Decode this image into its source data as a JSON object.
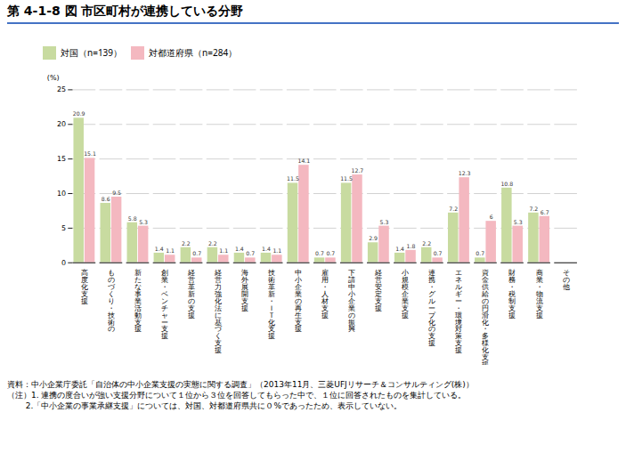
{
  "chart_data": {
    "type": "bar",
    "title": "第 4-1-8 図 市区町村が連携している分野",
    "ylabel": "(%)",
    "categories": [
      "高度化支援",
      "ものづくり・技術の",
      "新たな事業活動支援",
      "創業・ベンチャー支援",
      "経営革新の支援",
      "経営力強化法に基づく支援",
      "海外展開支援",
      "技術革新・ＩＴ化支援",
      "中小企業の再生支援",
      "雇用・人材支援",
      "下請中小企業の振興",
      "経営安定支援",
      "小規模企業支援",
      "連携・グループ化の支援",
      "エネルギー・環境対策支援",
      "資金供給の円滑化・多様化支援",
      "財務・税制支援",
      "商業・物流支援",
      "その他"
    ],
    "series": [
      {
        "name": "対国（n=139）",
        "color": "#c8dba0",
        "values": [
          20.9,
          8.6,
          5.8,
          1.4,
          2.2,
          2.2,
          1.4,
          1.4,
          11.5,
          0.7,
          11.5,
          2.9,
          1.4,
          2.2,
          7.2,
          0.7,
          10.8,
          7.2,
          0.0
        ]
      },
      {
        "name": "対都道府県（n=284）",
        "color": "#f4b8c0",
        "values": [
          15.1,
          9.5,
          5.3,
          1.1,
          0.7,
          1.1,
          0.7,
          1.1,
          14.1,
          0.7,
          12.7,
          5.3,
          1.8,
          0.7,
          12.3,
          6.0,
          5.3,
          6.7,
          0.0
        ]
      }
    ],
    "ylim": [
      0,
      25
    ],
    "yticks": [
      0,
      5,
      10,
      15,
      20,
      25
    ],
    "grid": true,
    "legend": "top",
    "data_labels": true,
    "annotations": [
      "資料：中小企業庁委託「自治体の中小企業支援の実態に関する調査」（2013年11月、三菱UFJリサーチ＆コンサルティング(株)）",
      "（注）1. 連携の度合いが強い支援分野について１位から３位を回答してもらった中で、１位に回答されたものを集計している。",
      "　　 2.「中小企業の事業承継支援」については、対国、対都道府県共に０%であったため、表示していない。"
    ]
  }
}
